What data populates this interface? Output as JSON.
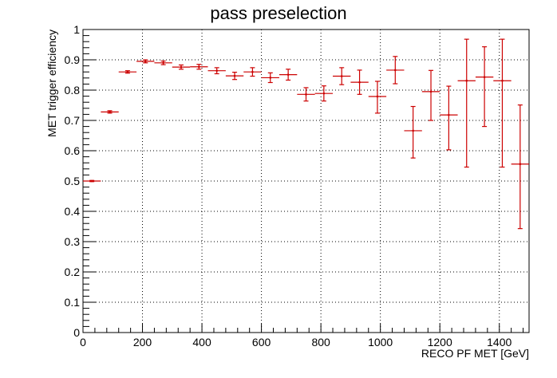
{
  "chart_data": {
    "type": "scatter",
    "title": "pass preselection",
    "xlabel": "RECO PF MET [GeV]",
    "ylabel": "MET trigger efficiency",
    "xlim": [
      0,
      1500
    ],
    "ylim": [
      0,
      1
    ],
    "x_ticks": [
      0,
      200,
      400,
      600,
      800,
      1000,
      1200,
      1400
    ],
    "x_tick_labels": [
      "0",
      "200",
      "400",
      "600",
      "800",
      "1000",
      "1200",
      "1400"
    ],
    "y_ticks": [
      0,
      0.1,
      0.2,
      0.3,
      0.4,
      0.5,
      0.6,
      0.7,
      0.8,
      0.9,
      1
    ],
    "y_tick_labels": [
      "0",
      "0.1",
      "0.2",
      "0.3",
      "0.4",
      "0.5",
      "0.6",
      "0.7",
      "0.8",
      "0.9",
      "1"
    ],
    "grid": true,
    "marker_color": "#cc0000",
    "series": [
      {
        "points": [
          {
            "x": 30,
            "y": 0.5,
            "xerr": 30,
            "yerr_low": 0.002,
            "yerr_high": 0.002
          },
          {
            "x": 90,
            "y": 0.728,
            "xerr": 30,
            "yerr_low": 0.004,
            "yerr_high": 0.004
          },
          {
            "x": 150,
            "y": 0.86,
            "xerr": 30,
            "yerr_low": 0.004,
            "yerr_high": 0.004
          },
          {
            "x": 210,
            "y": 0.895,
            "xerr": 30,
            "yerr_low": 0.005,
            "yerr_high": 0.005
          },
          {
            "x": 270,
            "y": 0.89,
            "xerr": 30,
            "yerr_low": 0.006,
            "yerr_high": 0.006
          },
          {
            "x": 330,
            "y": 0.876,
            "xerr": 30,
            "yerr_low": 0.007,
            "yerr_high": 0.007
          },
          {
            "x": 390,
            "y": 0.877,
            "xerr": 30,
            "yerr_low": 0.008,
            "yerr_high": 0.008
          },
          {
            "x": 450,
            "y": 0.864,
            "xerr": 30,
            "yerr_low": 0.01,
            "yerr_high": 0.01
          },
          {
            "x": 510,
            "y": 0.847,
            "xerr": 30,
            "yerr_low": 0.012,
            "yerr_high": 0.012
          },
          {
            "x": 570,
            "y": 0.86,
            "xerr": 30,
            "yerr_low": 0.014,
            "yerr_high": 0.014
          },
          {
            "x": 630,
            "y": 0.841,
            "xerr": 30,
            "yerr_low": 0.016,
            "yerr_high": 0.016
          },
          {
            "x": 690,
            "y": 0.851,
            "xerr": 30,
            "yerr_low": 0.018,
            "yerr_high": 0.018
          },
          {
            "x": 750,
            "y": 0.786,
            "xerr": 30,
            "yerr_low": 0.022,
            "yerr_high": 0.022
          },
          {
            "x": 810,
            "y": 0.789,
            "xerr": 30,
            "yerr_low": 0.025,
            "yerr_high": 0.025
          },
          {
            "x": 870,
            "y": 0.846,
            "xerr": 30,
            "yerr_low": 0.028,
            "yerr_high": 0.028
          },
          {
            "x": 930,
            "y": 0.826,
            "xerr": 30,
            "yerr_low": 0.04,
            "yerr_high": 0.04
          },
          {
            "x": 990,
            "y": 0.779,
            "xerr": 30,
            "yerr_low": 0.055,
            "yerr_high": 0.05
          },
          {
            "x": 1050,
            "y": 0.866,
            "xerr": 30,
            "yerr_low": 0.045,
            "yerr_high": 0.045
          },
          {
            "x": 1110,
            "y": 0.666,
            "xerr": 30,
            "yerr_low": 0.09,
            "yerr_high": 0.08
          },
          {
            "x": 1170,
            "y": 0.795,
            "xerr": 30,
            "yerr_low": 0.095,
            "yerr_high": 0.07
          },
          {
            "x": 1230,
            "y": 0.718,
            "xerr": 30,
            "yerr_low": 0.115,
            "yerr_high": 0.095
          },
          {
            "x": 1290,
            "y": 0.831,
            "xerr": 30,
            "yerr_low": 0.285,
            "yerr_high": 0.137
          },
          {
            "x": 1350,
            "y": 0.843,
            "xerr": 30,
            "yerr_low": 0.163,
            "yerr_high": 0.1
          },
          {
            "x": 1410,
            "y": 0.831,
            "xerr": 30,
            "yerr_low": 0.285,
            "yerr_high": 0.137
          },
          {
            "x": 1470,
            "y": 0.556,
            "xerr": 30,
            "yerr_low": 0.213,
            "yerr_high": 0.195
          }
        ]
      }
    ]
  }
}
